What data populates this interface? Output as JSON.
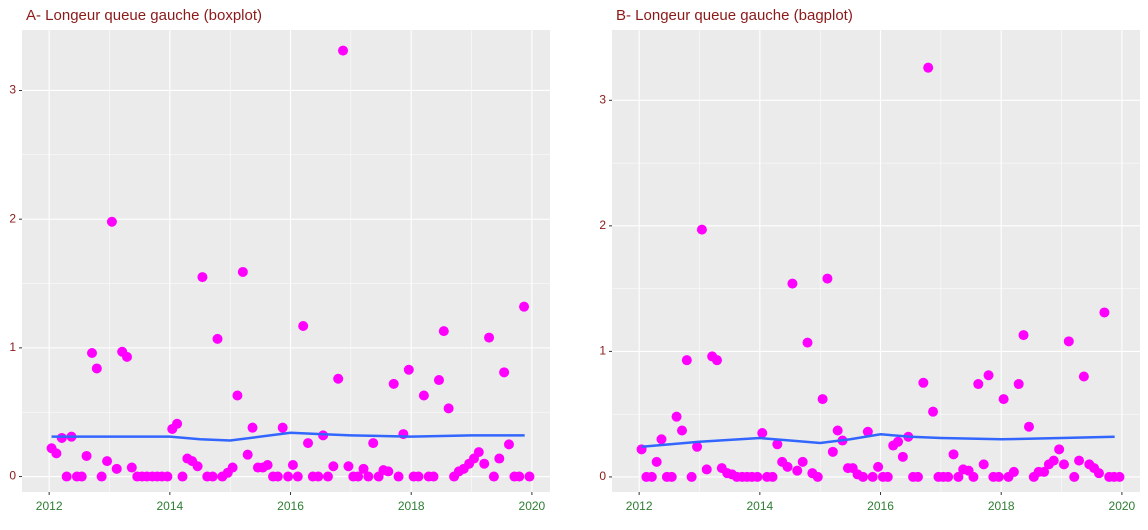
{
  "chart_data": [
    {
      "type": "scatter",
      "title": "A- Longeur queue gauche (boxplot)",
      "xlim": [
        2011.55,
        2020.3
      ],
      "ylim": [
        -0.12,
        3.47
      ],
      "xticks": [
        2012,
        2014,
        2016,
        2018,
        2020
      ],
      "yticks": [
        0,
        1,
        2,
        3
      ],
      "grid": true,
      "series": [
        {
          "type": "scatter",
          "color": "#ff00ff",
          "x": [
            2012.04,
            2012.12,
            2012.21,
            2012.29,
            2012.37,
            2012.46,
            2012.54,
            2012.62,
            2012.71,
            2012.79,
            2012.87,
            2012.96,
            2013.04,
            2013.12,
            2013.21,
            2013.29,
            2013.37,
            2013.46,
            2013.54,
            2013.62,
            2013.71,
            2013.79,
            2013.87,
            2013.96,
            2014.04,
            2014.12,
            2014.21,
            2014.29,
            2014.37,
            2014.46,
            2014.54,
            2014.62,
            2014.71,
            2014.79,
            2014.87,
            2014.96,
            2015.04,
            2015.12,
            2015.21,
            2015.29,
            2015.37,
            2015.46,
            2015.54,
            2015.62,
            2015.71,
            2015.79,
            2015.87,
            2015.96,
            2016.04,
            2016.12,
            2016.21,
            2016.29,
            2016.37,
            2016.46,
            2016.54,
            2016.62,
            2016.71,
            2016.79,
            2016.87,
            2016.96,
            2017.04,
            2017.12,
            2017.21,
            2017.29,
            2017.37,
            2017.46,
            2017.54,
            2017.62,
            2017.71,
            2017.79,
            2017.87,
            2017.96,
            2018.04,
            2018.12,
            2018.21,
            2018.29,
            2018.37,
            2018.46,
            2018.54,
            2018.62,
            2018.71,
            2018.79,
            2018.87,
            2018.96,
            2019.04,
            2019.12,
            2019.21,
            2019.29,
            2019.37,
            2019.46,
            2019.54,
            2019.62,
            2019.71,
            2019.79,
            2019.87,
            2019.96
          ],
          "values": [
            0.22,
            0.18,
            0.3,
            0,
            0.31,
            0,
            0,
            0.16,
            0.96,
            0.84,
            0,
            0.12,
            1.98,
            0.06,
            0.97,
            0.93,
            0.07,
            0,
            0,
            0,
            0,
            0,
            0,
            0,
            0.37,
            0.41,
            0,
            0.14,
            0.12,
            0.08,
            1.55,
            0,
            0,
            1.07,
            0,
            0.03,
            0.07,
            0.63,
            1.59,
            0.17,
            0.38,
            0.07,
            0.07,
            0.09,
            0,
            0,
            0.38,
            0,
            0.09,
            0,
            1.17,
            0.26,
            0,
            0,
            0.32,
            0,
            0.08,
            0.76,
            3.31,
            0.08,
            0,
            0,
            0.06,
            0,
            0.26,
            0,
            0.05,
            0.04,
            0.72,
            0,
            0.33,
            0.83,
            0,
            0,
            0.63,
            0,
            0,
            0.75,
            1.13,
            0.53,
            0,
            0.04,
            0.06,
            0.1,
            0.14,
            0.19,
            0.1,
            1.08,
            0,
            0.14,
            0.81,
            0.25,
            0,
            0,
            1.32,
            0
          ]
        },
        {
          "type": "line",
          "color": "#3366ff",
          "x": [
            2012.04,
            2013,
            2014,
            2014.5,
            2015,
            2015.5,
            2016,
            2016.5,
            2017,
            2018,
            2019,
            2019.88
          ],
          "values": [
            0.31,
            0.31,
            0.31,
            0.29,
            0.28,
            0.31,
            0.34,
            0.33,
            0.32,
            0.31,
            0.32,
            0.32
          ]
        }
      ]
    },
    {
      "type": "scatter",
      "title": "B- Longeur queue gauche (bagplot)",
      "xlim": [
        2011.55,
        2020.3
      ],
      "ylim": [
        -0.12,
        3.56
      ],
      "xticks": [
        2012,
        2014,
        2016,
        2018,
        2020
      ],
      "yticks": [
        0,
        1,
        2,
        3
      ],
      "grid": true,
      "series": [
        {
          "type": "scatter",
          "color": "#ff00ff",
          "x": [
            2012.04,
            2012.12,
            2012.21,
            2012.29,
            2012.37,
            2012.46,
            2012.54,
            2012.62,
            2012.71,
            2012.79,
            2012.87,
            2012.96,
            2013.04,
            2013.12,
            2013.21,
            2013.29,
            2013.37,
            2013.46,
            2013.54,
            2013.62,
            2013.71,
            2013.79,
            2013.87,
            2013.96,
            2014.04,
            2014.12,
            2014.21,
            2014.29,
            2014.37,
            2014.46,
            2014.54,
            2014.62,
            2014.71,
            2014.79,
            2014.87,
            2014.96,
            2015.04,
            2015.12,
            2015.21,
            2015.29,
            2015.37,
            2015.46,
            2015.54,
            2015.62,
            2015.71,
            2015.79,
            2015.87,
            2015.96,
            2016.04,
            2016.12,
            2016.21,
            2016.29,
            2016.37,
            2016.46,
            2016.54,
            2016.62,
            2016.71,
            2016.79,
            2016.87,
            2016.96,
            2017.04,
            2017.12,
            2017.21,
            2017.29,
            2017.37,
            2017.46,
            2017.54,
            2017.62,
            2017.71,
            2017.79,
            2017.87,
            2017.96,
            2018.04,
            2018.12,
            2018.21,
            2018.29,
            2018.37,
            2018.46,
            2018.54,
            2018.62,
            2018.71,
            2018.79,
            2018.87,
            2018.96,
            2019.04,
            2019.12,
            2019.21,
            2019.29,
            2019.37,
            2019.46,
            2019.54,
            2019.62,
            2019.71,
            2019.79,
            2019.87,
            2019.96
          ],
          "values": [
            0.22,
            0,
            0,
            0.12,
            0.3,
            0,
            0,
            0.48,
            0.37,
            0.93,
            0,
            0.24,
            1.97,
            0.06,
            0.96,
            0.93,
            0.07,
            0.03,
            0.02,
            0,
            0,
            0,
            0,
            0,
            0.35,
            0,
            0,
            0.26,
            0.12,
            0.08,
            1.54,
            0.05,
            0.12,
            1.07,
            0.03,
            0,
            0.62,
            1.58,
            0.2,
            0.37,
            0.29,
            0.07,
            0.07,
            0.02,
            0,
            0.36,
            0,
            0.08,
            0,
            0,
            0.25,
            0.28,
            0.16,
            0.32,
            0,
            0,
            0.75,
            3.26,
            0.52,
            0,
            0,
            0,
            0.18,
            0,
            0.06,
            0.05,
            0,
            0.74,
            0.1,
            0.81,
            0,
            0,
            0.62,
            0,
            0.04,
            0.74,
            1.13,
            0.4,
            0,
            0.04,
            0.04,
            0.1,
            0.13,
            0.22,
            0.1,
            1.08,
            0,
            0.13,
            0.8,
            0.1,
            0.07,
            0.03,
            1.31,
            0,
            0,
            0
          ]
        },
        {
          "type": "line",
          "color": "#3366ff",
          "x": [
            2012.04,
            2013,
            2014,
            2014.5,
            2015,
            2015.5,
            2016,
            2016.5,
            2017,
            2018,
            2019,
            2019.88
          ],
          "values": [
            0.24,
            0.28,
            0.31,
            0.29,
            0.27,
            0.3,
            0.34,
            0.32,
            0.31,
            0.3,
            0.31,
            0.32
          ]
        }
      ]
    }
  ]
}
